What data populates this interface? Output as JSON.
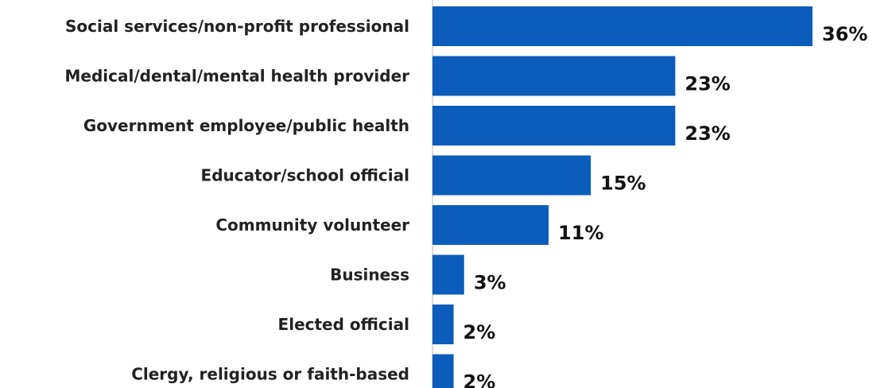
{
  "chart_data": {
    "type": "bar",
    "orientation": "horizontal",
    "categories": [
      "Social services/non-profit professional",
      "Medical/dental/mental health provider",
      "Government employee/public health",
      "Educator/school official",
      "Community volunteer",
      "Business",
      "Elected official",
      "Clergy, religious or faith-based"
    ],
    "values": [
      36,
      23,
      23,
      15,
      11,
      3,
      2,
      2
    ],
    "value_labels": [
      "36%",
      "23%",
      "23%",
      "15%",
      "11%",
      "3%",
      "2%",
      "2%"
    ],
    "unit": "%",
    "xlim": [
      0,
      36
    ],
    "grid": false,
    "legend": "none",
    "colors": {
      "bar": "#0C5DBB",
      "axis": "#d0d0d0",
      "text": "#222222"
    }
  }
}
